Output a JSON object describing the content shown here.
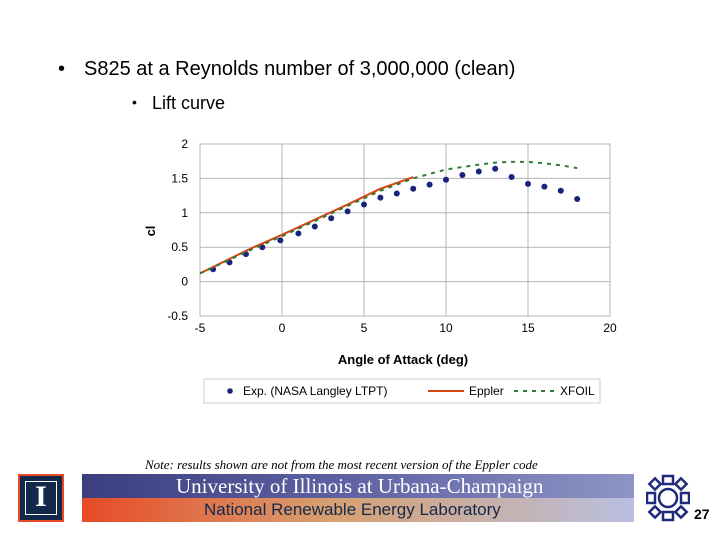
{
  "slide": {
    "bullet1": "S825 at a Reynolds number of 3,000,000 (clean)",
    "bullet2": "Lift curve",
    "note": "Note: results shown are not from the most recent version of the Eppler code",
    "page_number": "27"
  },
  "footer": {
    "logo_letter": "I",
    "university": "University of Illinois at Urbana-Champaign",
    "lab": "National Renewable Energy Laboratory"
  },
  "chart_data": {
    "type": "line",
    "title": "",
    "xlabel": "Angle of Attack (deg)",
    "ylabel": "cl",
    "xlim": [
      -5,
      20
    ],
    "ylim": [
      -0.5,
      2
    ],
    "xticks": [
      -5,
      0,
      5,
      10,
      15,
      20
    ],
    "yticks": [
      -0.5,
      0,
      0.5,
      1,
      1.5,
      2
    ],
    "grid": true,
    "legend_position": "bottom",
    "colors": {
      "exp": "#1a237e",
      "eppler": "#d84315",
      "xfoil": "#2e7d32"
    },
    "series": [
      {
        "name": "Exp. (NASA Langley LTPT)",
        "style": "markers",
        "x": [
          -4.2,
          -3.2,
          -2.2,
          -1.2,
          -0.1,
          1.0,
          2.0,
          3.0,
          4.0,
          5.0,
          6.0,
          7.0,
          8.0,
          9.0,
          10.0,
          11.0,
          12.0,
          13.0,
          14.0,
          15.0,
          16.0,
          17.0,
          18.0
        ],
        "y": [
          0.18,
          0.28,
          0.4,
          0.5,
          0.6,
          0.7,
          0.8,
          0.92,
          1.02,
          1.12,
          1.22,
          1.28,
          1.35,
          1.41,
          1.48,
          1.55,
          1.6,
          1.64,
          1.52,
          1.42,
          1.38,
          1.32,
          1.2
        ]
      },
      {
        "name": "Eppler",
        "style": "solid",
        "x": [
          -5,
          -2,
          0,
          2,
          4,
          6,
          8
        ],
        "y": [
          0.12,
          0.47,
          0.68,
          0.9,
          1.12,
          1.35,
          1.52
        ]
      },
      {
        "name": "XFOIL",
        "style": "dashed",
        "x": [
          -5,
          -2,
          0,
          2,
          4,
          6,
          8,
          10,
          12,
          13,
          14,
          15,
          16,
          17,
          18
        ],
        "y": [
          0.12,
          0.45,
          0.66,
          0.88,
          1.1,
          1.32,
          1.5,
          1.63,
          1.7,
          1.73,
          1.74,
          1.74,
          1.72,
          1.69,
          1.65
        ]
      }
    ]
  }
}
